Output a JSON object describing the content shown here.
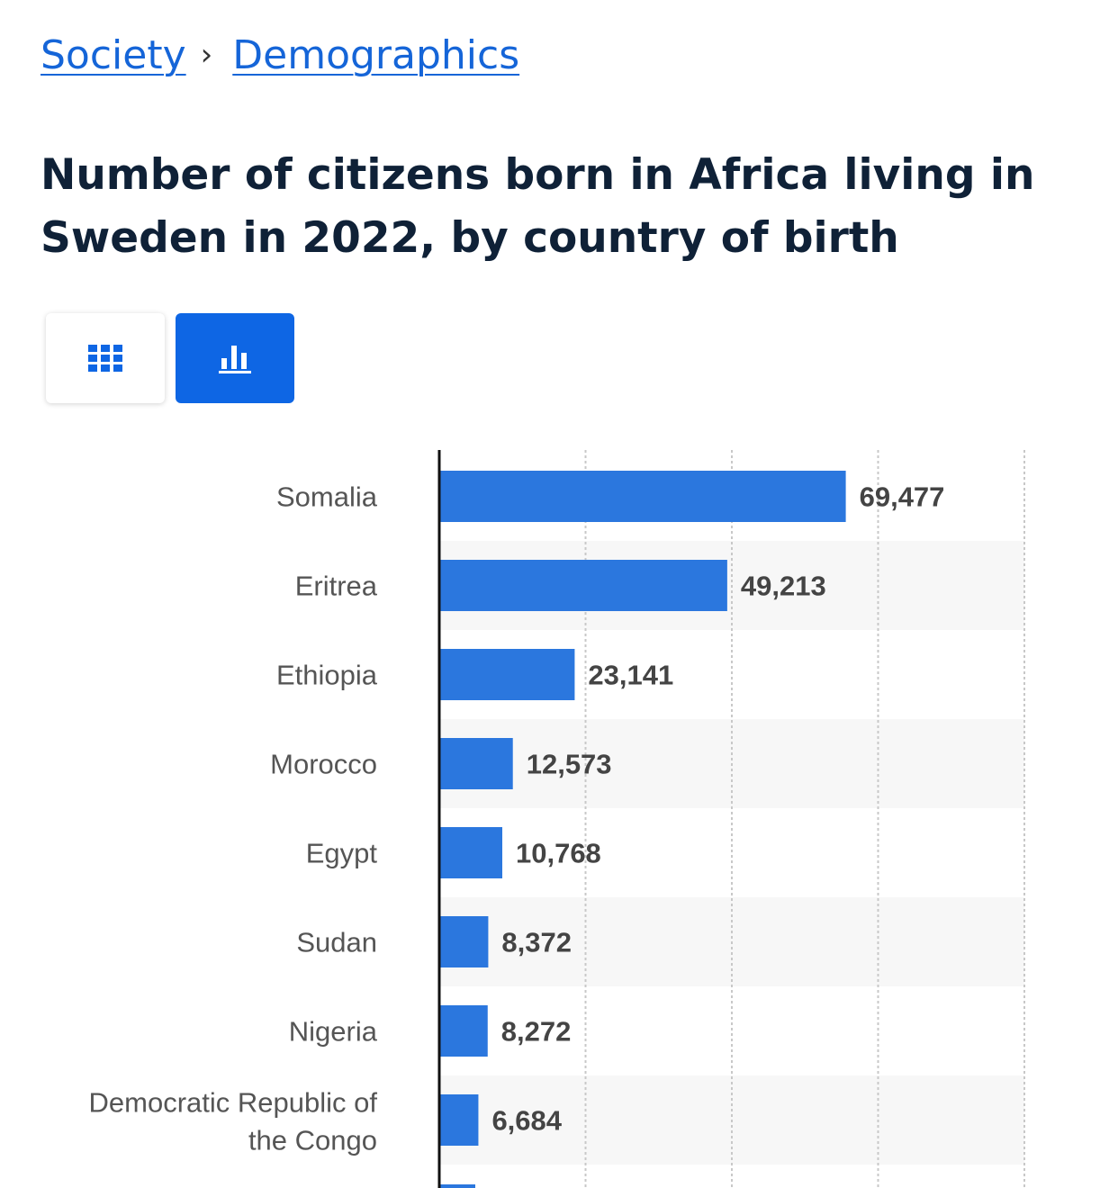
{
  "breadcrumb": {
    "items": [
      "Society",
      "Demographics"
    ],
    "separator": "›"
  },
  "title": "Number of citizens born in Africa living in Sweden in 2022, by country of birth",
  "view_toggle": {
    "options": [
      "table-icon",
      "bar-chart-icon"
    ],
    "selected": "bar-chart-icon"
  },
  "colors": {
    "bar": "#2b77de",
    "link": "#1565d8",
    "title": "#0f2137",
    "toggle_active": "#0e66e4"
  },
  "chart_data": {
    "type": "bar",
    "orientation": "horizontal",
    "categories": [
      "Somalia",
      "Eritrea",
      "Ethiopia",
      "Morocco",
      "Egypt",
      "Sudan",
      "Nigeria",
      "Democratic Republic of the Congo"
    ],
    "values": [
      69477,
      49213,
      23141,
      12573,
      10768,
      8372,
      8272,
      6684
    ],
    "value_labels": [
      "69,477",
      "49,213",
      "23,141",
      "12,573",
      "10,768",
      "8,372",
      "8,272",
      "6,684"
    ],
    "xlim": [
      0,
      100000
    ],
    "gridlines": [
      25000,
      50000,
      75000,
      100000
    ],
    "grid": true,
    "xlabel": "",
    "ylabel": ""
  }
}
